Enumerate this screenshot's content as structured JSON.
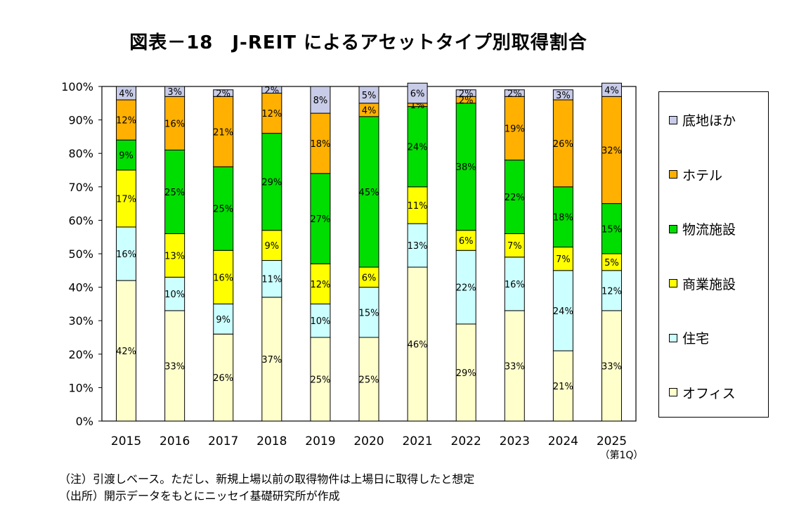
{
  "chart_data": {
    "type": "bar",
    "stacked": true,
    "title": "図表－18　J-REIT によるアセットタイプ別取得割合",
    "categories": [
      "2015",
      "2016",
      "2017",
      "2018",
      "2019",
      "2020",
      "2021",
      "2022",
      "2023",
      "2024",
      "2025"
    ],
    "category_sublabel": {
      "2025": "（第1Q）"
    },
    "ylim": [
      0,
      100
    ],
    "yticks": [
      "0%",
      "10%",
      "20%",
      "30%",
      "40%",
      "50%",
      "60%",
      "70%",
      "80%",
      "90%",
      "100%"
    ],
    "series": [
      {
        "name": "オフィス",
        "color": "#ffffcc",
        "values": [
          42,
          33,
          26,
          37,
          25,
          25,
          46,
          29,
          33,
          21,
          33
        ]
      },
      {
        "name": "住宅",
        "color": "#ccffff",
        "values": [
          16,
          10,
          9,
          11,
          10,
          15,
          13,
          22,
          16,
          24,
          12
        ]
      },
      {
        "name": "商業施設",
        "color": "#ffff00",
        "values": [
          17,
          13,
          16,
          9,
          12,
          6,
          11,
          6,
          7,
          7,
          5
        ]
      },
      {
        "name": "物流施設",
        "color": "#00dd00",
        "values": [
          9,
          25,
          25,
          29,
          27,
          45,
          24,
          38,
          22,
          18,
          15
        ]
      },
      {
        "name": "ホテル",
        "color": "#ffb000",
        "values": [
          12,
          16,
          21,
          12,
          18,
          4,
          1,
          2,
          19,
          26,
          32
        ]
      },
      {
        "name": "底地ほか",
        "color": "#c8cce8",
        "values": [
          4,
          3,
          2,
          2,
          8,
          5,
          6,
          2,
          2,
          3,
          4
        ]
      }
    ],
    "legend_order": [
      "底地ほか",
      "ホテル",
      "物流施設",
      "商業施設",
      "住宅",
      "オフィス"
    ],
    "legend_position": "right"
  },
  "notes": {
    "note1": "（注）引渡しベース。ただし、新規上場以前の取得物件は上場日に取得したと想定",
    "note2": "（出所）開示データをもとにニッセイ基礎研究所が作成"
  }
}
